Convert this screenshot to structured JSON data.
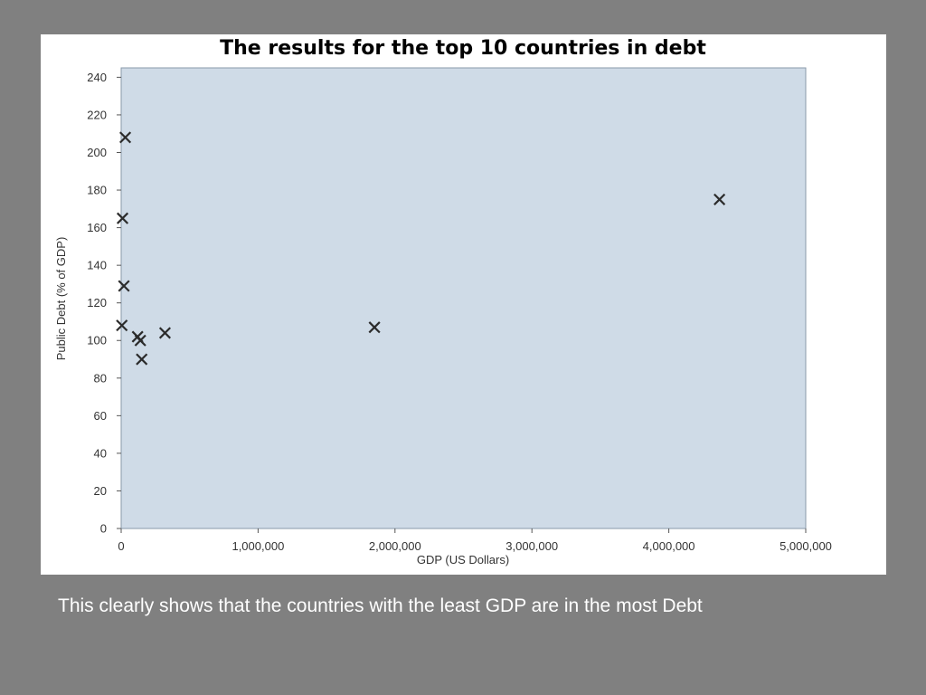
{
  "slide": {
    "background": "#808080",
    "caption": "This clearly shows that the countries with the least GDP are in the most Debt"
  },
  "chart_data": {
    "type": "scatter",
    "title": "The results for the top 10 countries in debt",
    "xlabel": "GDP (US Dollars)",
    "ylabel": "Public Debt (% of GDP)",
    "xlim": [
      0,
      5000000
    ],
    "ylim": [
      0,
      245
    ],
    "xticks": [
      0,
      1000000,
      2000000,
      3000000,
      4000000,
      5000000
    ],
    "xtick_labels": [
      "0",
      "1,000,000",
      "2,000,000",
      "3,000,000",
      "4,000,000",
      "5,000,000"
    ],
    "yticks": [
      0,
      20,
      40,
      60,
      80,
      100,
      120,
      140,
      160,
      180,
      200,
      220,
      240
    ],
    "ytick_labels": [
      "0",
      "20",
      "40",
      "60",
      "80",
      "100",
      "120",
      "140",
      "160",
      "180",
      "200",
      "220",
      "240"
    ],
    "grid": false,
    "marker": "x",
    "plot_background": "#cfdbe7",
    "marker_color": "#2b2b2b",
    "points": [
      {
        "x": 30000,
        "y": 208
      },
      {
        "x": 10000,
        "y": 165
      },
      {
        "x": 20000,
        "y": 129
      },
      {
        "x": 5000,
        "y": 108
      },
      {
        "x": 120000,
        "y": 102
      },
      {
        "x": 140000,
        "y": 100
      },
      {
        "x": 150000,
        "y": 90
      },
      {
        "x": 320000,
        "y": 104
      },
      {
        "x": 1850000,
        "y": 107
      },
      {
        "x": 4370000,
        "y": 175
      }
    ]
  }
}
